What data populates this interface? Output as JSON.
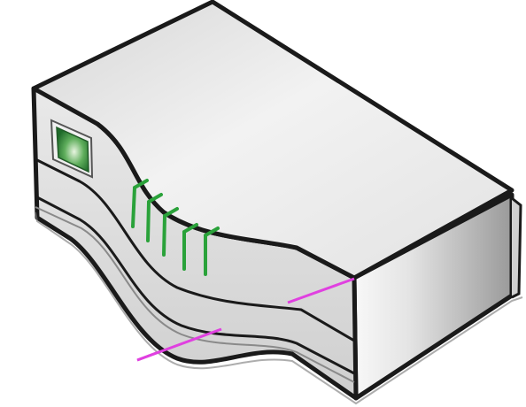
{
  "device": {
    "icon": "network-hub-icon",
    "port_lights": 5,
    "colors": {
      "outline": "#1a1a1a",
      "body_light": "#f7f7f7",
      "body_mid": "#d9d9d9",
      "body_dark": "#a9a9a9",
      "status_led": "#2e8b3a",
      "port_light": "#2aa23a",
      "cable": "#e040e0"
    }
  }
}
